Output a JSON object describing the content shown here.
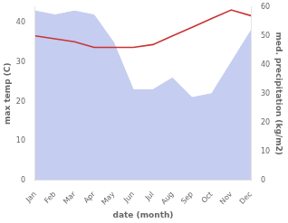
{
  "chart_data": {
    "type": "line",
    "categories": [
      "Jan",
      "Feb",
      "Mar",
      "Apr",
      "May",
      "Jun",
      "Jul",
      "Aug",
      "Sep",
      "Oct",
      "Nov",
      "Dec"
    ],
    "series": [
      {
        "type": "area",
        "color": "#c5cdf0",
        "values": [
          43,
          42,
          43,
          42,
          35,
          23,
          23,
          26,
          21,
          22,
          30,
          38
        ]
      },
      {
        "type": "line",
        "color": "#cc3333",
        "axis": "y2",
        "values": [
          50,
          49,
          48,
          46,
          46,
          46,
          47,
          50,
          53,
          56,
          59,
          57
        ]
      }
    ],
    "xlabel": "date (month)",
    "ylabel": "max temp (C)",
    "y2label": "med. precipitation (kg/m2)",
    "ylim": [
      0,
      44
    ],
    "yticks": [
      0,
      10,
      20,
      30,
      40
    ],
    "y2lim": [
      0,
      60
    ],
    "y2ticks": [
      0,
      10,
      20,
      30,
      40,
      50,
      60
    ],
    "grid": false
  }
}
